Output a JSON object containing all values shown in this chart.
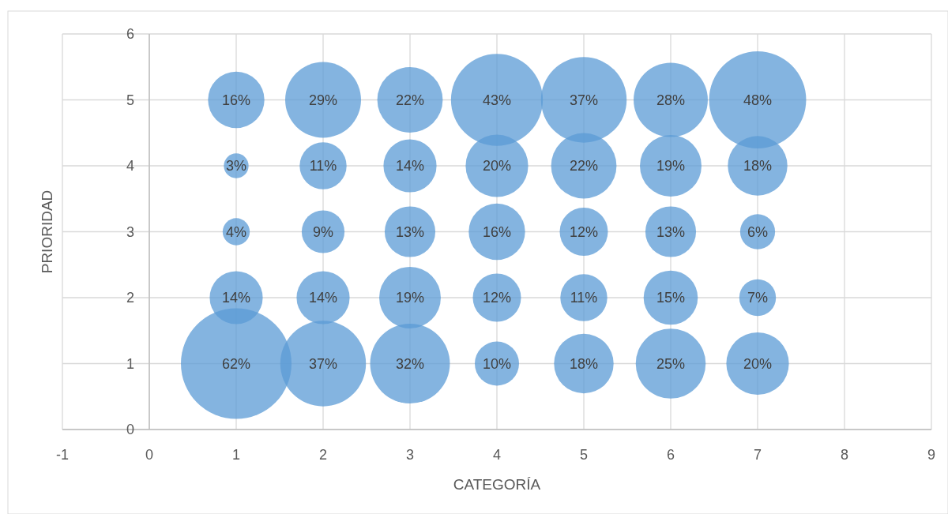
{
  "chart_data": {
    "type": "bubble",
    "xlabel": "CATEGORÍA",
    "ylabel": "PRIORIDAD",
    "xlim": [
      -1,
      9
    ],
    "ylim": [
      0,
      6
    ],
    "xticks": [
      -1,
      0,
      1,
      2,
      3,
      4,
      5,
      6,
      7,
      8,
      9
    ],
    "yticks": [
      0,
      1,
      2,
      3,
      4,
      5,
      6
    ],
    "grid": true,
    "x": [
      1,
      2,
      3,
      4,
      5,
      6,
      7,
      1,
      2,
      3,
      4,
      5,
      6,
      7,
      1,
      2,
      3,
      4,
      5,
      6,
      7,
      1,
      2,
      3,
      4,
      5,
      6,
      7,
      1,
      2,
      3,
      4,
      5,
      6,
      7
    ],
    "series": [
      {
        "color": "#5b9bd5",
        "values": [
          5,
          5,
          5,
          5,
          5,
          5,
          5,
          4,
          4,
          4,
          4,
          4,
          4,
          4,
          3,
          3,
          3,
          3,
          3,
          3,
          3,
          2,
          2,
          2,
          2,
          2,
          2,
          2,
          1,
          1,
          1,
          1,
          1,
          1,
          1
        ],
        "sizes": [
          0.26,
          0.47,
          0.35,
          0.69,
          0.6,
          0.45,
          0.77,
          0.05,
          0.18,
          0.23,
          0.32,
          0.35,
          0.31,
          0.29,
          0.06,
          0.15,
          0.21,
          0.26,
          0.19,
          0.21,
          0.1,
          0.23,
          0.23,
          0.31,
          0.19,
          0.18,
          0.24,
          0.11,
          1,
          0.6,
          0.52,
          0.16,
          0.29,
          0.4,
          0.32
        ]
      }
    ],
    "annotations": [
      {
        "text": "16%",
        "x": 1,
        "y": 5
      },
      {
        "text": "29%",
        "x": 2,
        "y": 5
      },
      {
        "text": "22%",
        "x": 3,
        "y": 5
      },
      {
        "text": "43%",
        "x": 4,
        "y": 5
      },
      {
        "text": "37%",
        "x": 5,
        "y": 5
      },
      {
        "text": "28%",
        "x": 6,
        "y": 5
      },
      {
        "text": "48%",
        "x": 7,
        "y": 5
      },
      {
        "text": "3%",
        "x": 1,
        "y": 4
      },
      {
        "text": "11%",
        "x": 2,
        "y": 4
      },
      {
        "text": "14%",
        "x": 3,
        "y": 4
      },
      {
        "text": "20%",
        "x": 4,
        "y": 4
      },
      {
        "text": "22%",
        "x": 5,
        "y": 4
      },
      {
        "text": "19%",
        "x": 6,
        "y": 4
      },
      {
        "text": "18%",
        "x": 7,
        "y": 4
      },
      {
        "text": "4%",
        "x": 1,
        "y": 3
      },
      {
        "text": "9%",
        "x": 2,
        "y": 3
      },
      {
        "text": "13%",
        "x": 3,
        "y": 3
      },
      {
        "text": "16%",
        "x": 4,
        "y": 3
      },
      {
        "text": "12%",
        "x": 5,
        "y": 3
      },
      {
        "text": "13%",
        "x": 6,
        "y": 3
      },
      {
        "text": "6%",
        "x": 7,
        "y": 3
      },
      {
        "text": "14%",
        "x": 1,
        "y": 2
      },
      {
        "text": "14%",
        "x": 2,
        "y": 2
      },
      {
        "text": "19%",
        "x": 3,
        "y": 2
      },
      {
        "text": "12%",
        "x": 4,
        "y": 2
      },
      {
        "text": "11%",
        "x": 5,
        "y": 2
      },
      {
        "text": "15%",
        "x": 6,
        "y": 2
      },
      {
        "text": "7%",
        "x": 7,
        "y": 2
      },
      {
        "text": "62%",
        "x": 1,
        "y": 1
      },
      {
        "text": "37%",
        "x": 2,
        "y": 1
      },
      {
        "text": "32%",
        "x": 3,
        "y": 1
      },
      {
        "text": "10%",
        "x": 4,
        "y": 1
      },
      {
        "text": "18%",
        "x": 5,
        "y": 1
      },
      {
        "text": "25%",
        "x": 6,
        "y": 1
      },
      {
        "text": "20%",
        "x": 7,
        "y": 1
      }
    ]
  }
}
